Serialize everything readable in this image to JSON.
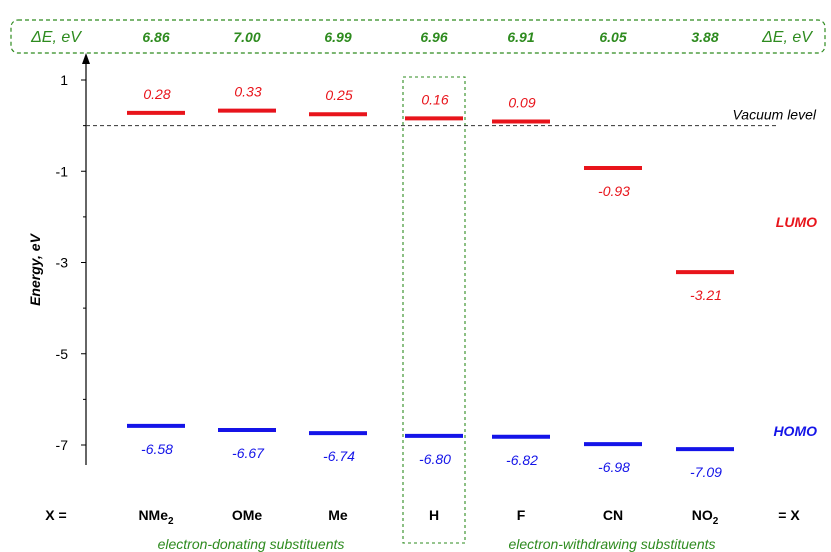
{
  "chart_data": {
    "type": "energy-level diagram",
    "ylabel": "Energy, eV",
    "ylim": [
      -7.4,
      1.2
    ],
    "y_ticks": [
      "1",
      "-1",
      "-3",
      "-5",
      "-7"
    ],
    "y_tick_values": [
      1,
      -1,
      -3,
      -5,
      -7
    ],
    "categories": [
      "NMe2",
      "OMe",
      "Me",
      "H",
      "F",
      "CN",
      "NO2"
    ],
    "category_labels": [
      {
        "main": "NMe",
        "sub": "2"
      },
      {
        "main": "OMe",
        "sub": ""
      },
      {
        "main": "Me",
        "sub": ""
      },
      {
        "main": "H",
        "sub": ""
      },
      {
        "main": "F",
        "sub": ""
      },
      {
        "main": "CN",
        "sub": ""
      },
      {
        "main": "NO",
        "sub": "2"
      }
    ],
    "x_left_label": "X =",
    "x_right_label": "= X",
    "series": [
      {
        "name": "LUMO",
        "values": [
          0.28,
          0.33,
          0.25,
          0.16,
          0.09,
          -0.93,
          -3.21
        ],
        "labels": [
          "0.28",
          "0.33",
          "0.25",
          "0.16",
          "0.09",
          "-0.93",
          "-3.21"
        ]
      },
      {
        "name": "HOMO",
        "values": [
          -6.58,
          -6.67,
          -6.74,
          -6.8,
          -6.82,
          -6.98,
          -7.09
        ],
        "labels": [
          "-6.58",
          "-6.67",
          "-6.74",
          "-6.80",
          "-6.82",
          "-6.98",
          "-7.09"
        ]
      }
    ],
    "gap": {
      "label": "ΔE, eV",
      "values": [
        "6.86",
        "7.00",
        "6.99",
        "6.96",
        "6.91",
        "6.05",
        "3.88"
      ]
    },
    "reference_line": {
      "label": "Vacuum level",
      "value": 0
    },
    "highlighted_category": "H",
    "group_labels": [
      "electron-donating substituents",
      "electron-withdrawing substituents"
    ],
    "colors": {
      "LUMO": "#e8141b",
      "HOMO": "#1414e8",
      "gap": "#2e8b1f",
      "axis": "#000000"
    }
  }
}
